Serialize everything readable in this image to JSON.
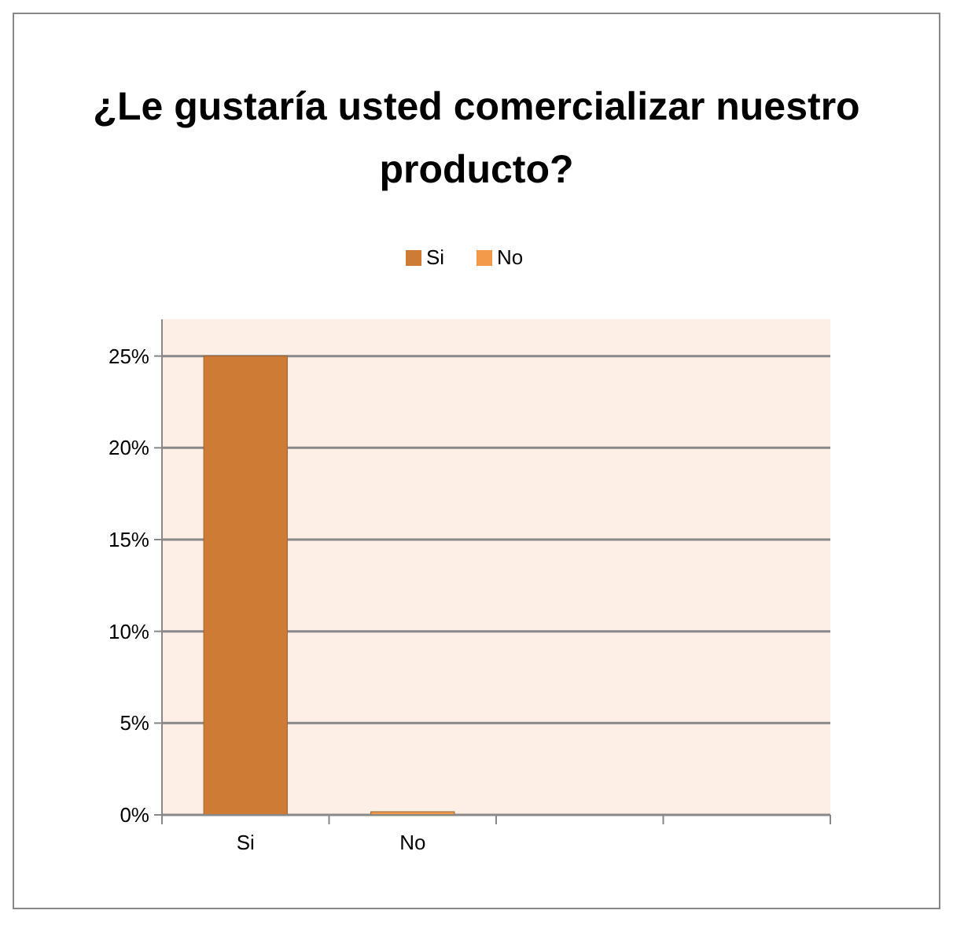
{
  "chart_data": {
    "type": "bar",
    "title": "¿Le gustaría usted comercializar nuestro producto?",
    "categories": [
      "Si",
      "No",
      null,
      null
    ],
    "series": [
      {
        "name": "Si",
        "color": "#cd7b35",
        "values": [
          25,
          null,
          null,
          null
        ]
      },
      {
        "name": "No",
        "color": "#f29a4a",
        "values": [
          null,
          0,
          null,
          null
        ]
      }
    ],
    "ylim": [
      0,
      27
    ],
    "yticks": [
      {
        "value": 0,
        "label": "0%"
      },
      {
        "value": 5,
        "label": "5%"
      },
      {
        "value": 10,
        "label": "10%"
      },
      {
        "value": 15,
        "label": "15%"
      },
      {
        "value": 20,
        "label": "20%"
      },
      {
        "value": 25,
        "label": "25%"
      }
    ],
    "grid": "y",
    "legend": "top"
  }
}
